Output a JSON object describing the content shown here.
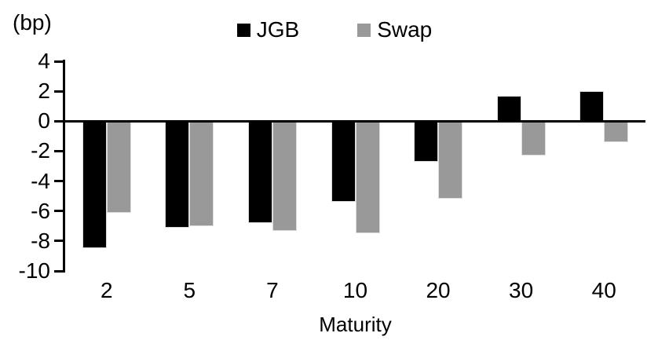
{
  "chart_data": {
    "type": "bar",
    "title": "",
    "unit_label": "(bp)",
    "xlabel": "Maturity",
    "ylabel": "",
    "categories": [
      "2",
      "5",
      "7",
      "10",
      "20",
      "30",
      "40"
    ],
    "series": [
      {
        "name": "JGB",
        "color": "#000000",
        "values": [
          -8.5,
          -7.1,
          -6.8,
          -5.4,
          -2.7,
          1.7,
          2.0
        ]
      },
      {
        "name": "Swap",
        "color": "#999999",
        "values": [
          -6.1,
          -7.0,
          -7.3,
          -7.5,
          -5.2,
          -2.3,
          -1.4
        ]
      }
    ],
    "ylim": [
      -10,
      4
    ],
    "yticks": [
      4,
      2,
      0,
      -2,
      -4,
      -6,
      -8,
      -10
    ],
    "legend_position": "top-center",
    "grid": false,
    "axis_color": "#000000",
    "background_color": "#ffffff"
  }
}
